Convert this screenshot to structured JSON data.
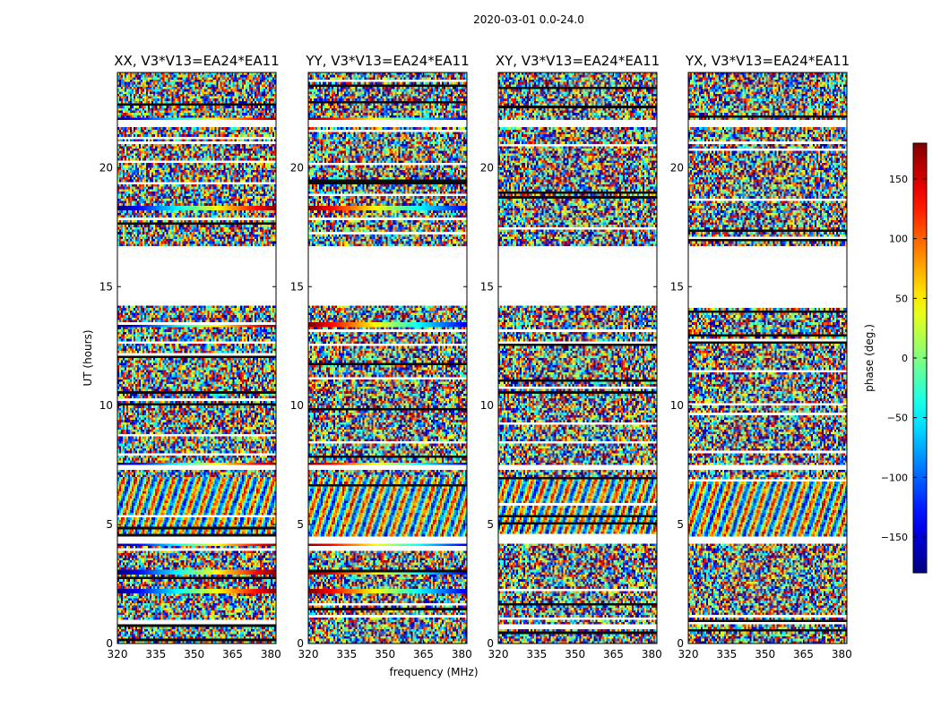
{
  "chart_data": {
    "type": "heatmap",
    "suptitle": "2020-03-01 0.0-24.0",
    "panels": [
      {
        "title": "XX, V3*V13=EA24*EA11"
      },
      {
        "title": "YY, V3*V13=EA24*EA11"
      },
      {
        "title": "XY, V3*V13=EA24*EA11"
      },
      {
        "title": "YX, V3*V13=EA24*EA11"
      }
    ],
    "xlabel": "frequency (MHz)",
    "ylabel": "UT (hours)",
    "xlim": [
      320,
      382
    ],
    "ylim": [
      0,
      24
    ],
    "xticks": [
      320,
      335,
      350,
      365,
      380
    ],
    "yticks": [
      0,
      5,
      10,
      15,
      20
    ],
    "colorbar": {
      "label": "phase (deg.)",
      "range": [
        -180,
        180
      ],
      "ticks": [
        -150,
        -100,
        -50,
        0,
        50,
        100,
        150
      ],
      "tick_labels": [
        "−150",
        "−100",
        "−50",
        "0",
        "50",
        "100",
        "150"
      ],
      "colormap": "jet"
    },
    "gaps_hours": [
      [
        14.2,
        16.7
      ],
      [
        4.2,
        4.5
      ],
      [
        7.3,
        7.5
      ],
      [
        21.7,
        22.0
      ]
    ],
    "coherent_rows_hours": [
      22.0,
      18.3,
      13.4,
      7.5,
      4.2,
      3.0,
      2.2
    ]
  }
}
